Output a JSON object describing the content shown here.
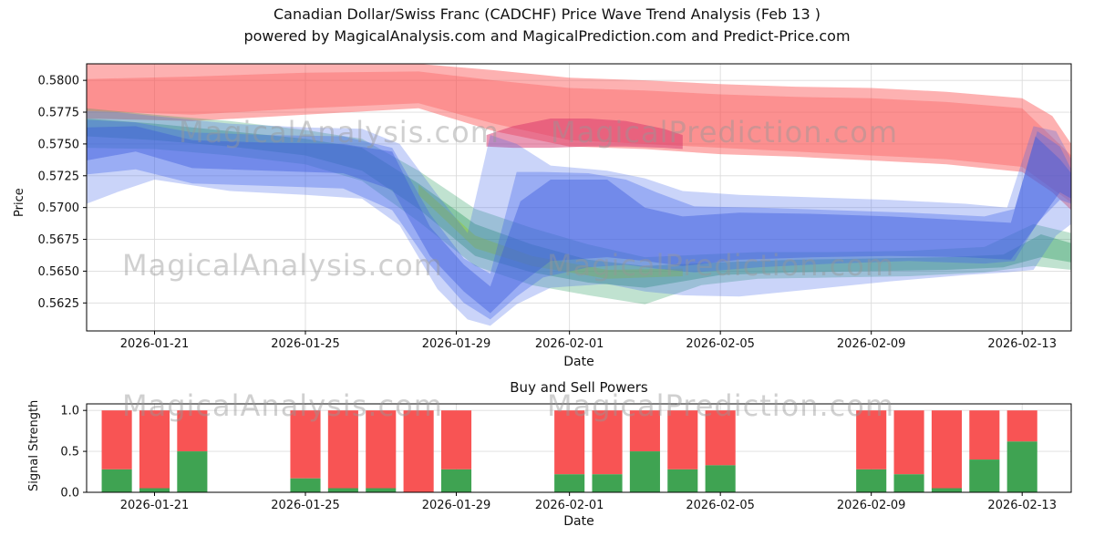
{
  "header": {
    "title_line1": "Canadian Dollar/Swiss Franc (CADCHF) Price Wave Trend Analysis (Feb 13 )",
    "title_line2": "powered by MagicalAnalysis.com and MagicalPrediction.com and Predict-Price.com"
  },
  "watermarks": {
    "analysis": "MagicalAnalysis.com",
    "prediction": "MagicalPrediction.com"
  },
  "colors": {
    "grid": "#dcdcdc",
    "spine": "#000000",
    "red_band": "#fa5252",
    "crimson_band": "#d6336c",
    "blue_band": "#4263eb",
    "green_band": "#2f9e62",
    "yellowgreen_band": "#94c939",
    "bar_red": "#f85454",
    "bar_green": "#3fa352"
  },
  "chart_data": [
    {
      "id": "price",
      "type": "area",
      "title": "",
      "xlabel": "Date",
      "ylabel": "Price",
      "grid": true,
      "legend": false,
      "x_units": "day-of-january-2026 (Feb d = 31+d)",
      "xlim": [
        19.2,
        45.3
      ],
      "ylim": [
        0.5603,
        0.5813
      ],
      "ytick_decimals": 4,
      "yticks": [
        0.5625,
        0.565,
        0.5675,
        0.57,
        0.5725,
        0.575,
        0.5775,
        0.58
      ],
      "xticks": [
        {
          "v": 21,
          "label": "2026-01-21"
        },
        {
          "v": 25,
          "label": "2026-01-25"
        },
        {
          "v": 29,
          "label": "2026-01-29"
        },
        {
          "v": 32,
          "label": "2026-02-01"
        },
        {
          "v": 36,
          "label": "2026-02-05"
        },
        {
          "v": 40,
          "label": "2026-02-09"
        },
        {
          "v": 44,
          "label": "2026-02-13"
        }
      ],
      "bands": [
        {
          "name": "red-envelope-band",
          "color": "#fa5252",
          "opacity": 0.45,
          "x": [
            19.2,
            22,
            25,
            28,
            30,
            32,
            34,
            36,
            38,
            40,
            42,
            44,
            44.8,
            45.3
          ],
          "hi": [
            0.5813,
            0.5813,
            0.5813,
            0.5813,
            0.5808,
            0.5802,
            0.58,
            0.5797,
            0.5795,
            0.5794,
            0.5791,
            0.5786,
            0.5772,
            0.575
          ],
          "lo": [
            0.577,
            0.5768,
            0.5773,
            0.5778,
            0.576,
            0.5748,
            0.5746,
            0.5742,
            0.574,
            0.5737,
            0.5734,
            0.5728,
            0.5712,
            0.5698
          ]
        },
        {
          "name": "red-inner-band",
          "color": "#fa5252",
          "opacity": 0.35,
          "x": [
            19.2,
            22,
            25,
            28,
            30,
            32,
            34,
            36,
            38,
            40,
            42,
            44,
            45.3
          ],
          "hi": [
            0.5801,
            0.5803,
            0.5806,
            0.5807,
            0.58,
            0.5794,
            0.5792,
            0.5789,
            0.5787,
            0.5786,
            0.5783,
            0.5778,
            0.5741
          ],
          "lo": [
            0.5776,
            0.5773,
            0.5778,
            0.5782,
            0.5766,
            0.5753,
            0.575,
            0.5747,
            0.5744,
            0.5741,
            0.5738,
            0.5732,
            0.5704
          ]
        },
        {
          "name": "crimson-band",
          "color": "#d6336c",
          "opacity": 0.5,
          "x": [
            29.8,
            30.5,
            31.5,
            32.5,
            33.5,
            34.5,
            35
          ],
          "hi": [
            0.5757,
            0.5764,
            0.577,
            0.577,
            0.5768,
            0.5762,
            0.5757
          ],
          "lo": [
            0.5748,
            0.5747,
            0.5747,
            0.5748,
            0.5748,
            0.5747,
            0.5746
          ]
        },
        {
          "name": "green-outer-band",
          "color": "#2f9e62",
          "opacity": 0.3,
          "x": [
            19.2,
            21,
            23,
            25,
            26.5,
            28,
            29.5,
            31,
            32.5,
            34,
            35.5,
            37,
            39,
            41,
            43,
            44.3,
            45.3
          ],
          "hi": [
            0.5778,
            0.5773,
            0.5768,
            0.5761,
            0.5754,
            0.5729,
            0.5699,
            0.5684,
            0.5671,
            0.5661,
            0.5663,
            0.5665,
            0.5665,
            0.5666,
            0.5669,
            0.5687,
            0.568
          ],
          "lo": [
            0.5747,
            0.5746,
            0.5741,
            0.5734,
            0.5721,
            0.5689,
            0.5654,
            0.5639,
            0.5631,
            0.5624,
            0.5639,
            0.5644,
            0.5645,
            0.5646,
            0.5649,
            0.5654,
            0.5651
          ]
        },
        {
          "name": "green-inner-band",
          "color": "#2f9e62",
          "opacity": 0.4,
          "x": [
            19.2,
            21,
            23,
            25,
            26.5,
            28,
            29.5,
            31,
            32.5,
            34,
            36,
            38,
            40,
            42,
            43.5,
            44.5,
            45.3
          ],
          "hi": [
            0.577,
            0.5766,
            0.576,
            0.5754,
            0.5747,
            0.5719,
            0.5687,
            0.5671,
            0.5659,
            0.5654,
            0.5657,
            0.5659,
            0.566,
            0.5661,
            0.5663,
            0.5679,
            0.5672
          ],
          "lo": [
            0.5756,
            0.5753,
            0.5748,
            0.5741,
            0.5729,
            0.5699,
            0.5662,
            0.5649,
            0.5641,
            0.5637,
            0.5647,
            0.5649,
            0.565,
            0.5651,
            0.5653,
            0.5661,
            0.5657
          ]
        },
        {
          "name": "yellowgreen-strip-band",
          "color": "#94c939",
          "opacity": 0.5,
          "x": [
            28,
            29.5,
            31,
            33,
            35
          ],
          "hi": [
            0.5718,
            0.5678,
            0.5662,
            0.5651,
            0.5652
          ],
          "lo": [
            0.571,
            0.5668,
            0.5654,
            0.5644,
            0.5646
          ]
        },
        {
          "name": "blue-outer-band",
          "color": "#4263eb",
          "opacity": 0.28,
          "x": [
            19.2,
            20,
            21,
            23,
            25,
            26.5,
            27.5,
            28.5,
            29.3,
            29.9,
            30.6,
            31.5,
            33,
            34,
            35,
            36.5,
            38.5,
            40.5,
            42.5,
            43.6,
            44.3,
            44.9,
            45.3
          ],
          "hi": [
            0.5776,
            0.5775,
            0.5772,
            0.5766,
            0.5763,
            0.5762,
            0.575,
            0.571,
            0.568,
            0.5757,
            0.575,
            0.5733,
            0.5729,
            0.5723,
            0.5713,
            0.571,
            0.5708,
            0.5706,
            0.5703,
            0.57,
            0.5764,
            0.576,
            0.5738
          ],
          "lo": [
            0.5703,
            0.5712,
            0.5722,
            0.5713,
            0.571,
            0.5707,
            0.5686,
            0.5636,
            0.5612,
            0.5607,
            0.5624,
            0.5637,
            0.564,
            0.5634,
            0.5631,
            0.563,
            0.5636,
            0.5642,
            0.5647,
            0.5649,
            0.5651,
            0.5678,
            0.5687
          ]
        },
        {
          "name": "blue-mid-band",
          "color": "#4263eb",
          "opacity": 0.35,
          "x": [
            19.2,
            20.5,
            22,
            24,
            26,
            27.3,
            28.3,
            29.2,
            29.9,
            30.6,
            31.3,
            32.5,
            33.5,
            34.3,
            35.3,
            37,
            39,
            41,
            43,
            43.8,
            44.4,
            45,
            45.3
          ],
          "hi": [
            0.5769,
            0.5767,
            0.5759,
            0.5757,
            0.5756,
            0.5747,
            0.5695,
            0.566,
            0.5648,
            0.5728,
            0.5728,
            0.5727,
            0.5722,
            0.5712,
            0.5701,
            0.57,
            0.5698,
            0.5696,
            0.5693,
            0.5699,
            0.576,
            0.5748,
            0.573
          ],
          "lo": [
            0.5726,
            0.573,
            0.5719,
            0.5717,
            0.5715,
            0.5698,
            0.5655,
            0.5625,
            0.5612,
            0.563,
            0.5645,
            0.5653,
            0.5655,
            0.5652,
            0.5649,
            0.5653,
            0.5656,
            0.5658,
            0.5656,
            0.5658,
            0.5688,
            0.5706,
            0.5703
          ]
        },
        {
          "name": "blue-inner-band",
          "color": "#3b5bdb",
          "opacity": 0.42,
          "x": [
            19.2,
            20.5,
            22,
            24,
            26,
            27.3,
            28.3,
            29.2,
            29.9,
            30.7,
            31.5,
            33,
            34,
            35,
            36.5,
            38.5,
            40.5,
            42.5,
            43.7,
            44.35,
            45,
            45.3
          ],
          "hi": [
            0.5763,
            0.5764,
            0.5753,
            0.5751,
            0.575,
            0.5744,
            0.5685,
            0.5655,
            0.5638,
            0.5705,
            0.5722,
            0.5722,
            0.57,
            0.5693,
            0.5696,
            0.5695,
            0.5693,
            0.569,
            0.5688,
            0.5756,
            0.5738,
            0.5727
          ],
          "lo": [
            0.5737,
            0.5744,
            0.5731,
            0.5729,
            0.5727,
            0.5714,
            0.5662,
            0.5634,
            0.5617,
            0.564,
            0.5658,
            0.5661,
            0.5658,
            0.5654,
            0.5659,
            0.5661,
            0.5662,
            0.5661,
            0.5659,
            0.5685,
            0.5712,
            0.5707
          ]
        }
      ]
    },
    {
      "id": "signals",
      "type": "bar",
      "title": "Buy and Sell Powers",
      "xlabel": "Date",
      "ylabel": "Signal Strength",
      "grid": true,
      "legend": false,
      "xlim": [
        19.2,
        45.3
      ],
      "ylim": [
        0,
        1.08
      ],
      "ytick_decimals": 1,
      "yticks": [
        0.0,
        0.5,
        1.0
      ],
      "xticks": [
        {
          "v": 21,
          "label": "2026-01-21"
        },
        {
          "v": 25,
          "label": "2026-01-25"
        },
        {
          "v": 29,
          "label": "2026-01-29"
        },
        {
          "v": 32,
          "label": "2026-02-01"
        },
        {
          "v": 36,
          "label": "2026-02-05"
        },
        {
          "v": 40,
          "label": "2026-02-09"
        },
        {
          "v": 44,
          "label": "2026-02-13"
        }
      ],
      "bar_width": 0.8,
      "buy_color": "#3fa352",
      "sell_color": "#f85454",
      "bars": [
        {
          "date": "2026-01-20",
          "x": 20,
          "buy": 0.28,
          "sell": 0.72
        },
        {
          "date": "2026-01-21",
          "x": 21,
          "buy": 0.05,
          "sell": 0.95
        },
        {
          "date": "2026-01-22",
          "x": 22,
          "buy": 0.5,
          "sell": 0.5
        },
        {
          "date": "2026-01-25",
          "x": 25,
          "buy": 0.17,
          "sell": 0.83
        },
        {
          "date": "2026-01-26",
          "x": 26,
          "buy": 0.05,
          "sell": 0.95
        },
        {
          "date": "2026-01-27",
          "x": 27,
          "buy": 0.05,
          "sell": 0.95
        },
        {
          "date": "2026-01-28",
          "x": 28,
          "buy": 0.0,
          "sell": 1.0
        },
        {
          "date": "2026-01-29",
          "x": 29,
          "buy": 0.28,
          "sell": 0.72
        },
        {
          "date": "2026-02-01",
          "x": 32,
          "buy": 0.22,
          "sell": 0.78
        },
        {
          "date": "2026-02-02",
          "x": 33,
          "buy": 0.22,
          "sell": 0.78
        },
        {
          "date": "2026-02-03",
          "x": 34,
          "buy": 0.5,
          "sell": 0.5
        },
        {
          "date": "2026-02-04",
          "x": 35,
          "buy": 0.28,
          "sell": 0.72
        },
        {
          "date": "2026-02-05",
          "x": 36,
          "buy": 0.33,
          "sell": 0.67
        },
        {
          "date": "2026-02-09",
          "x": 40,
          "buy": 0.28,
          "sell": 0.72
        },
        {
          "date": "2026-02-10",
          "x": 41,
          "buy": 0.22,
          "sell": 0.78
        },
        {
          "date": "2026-02-11",
          "x": 42,
          "buy": 0.05,
          "sell": 0.95
        },
        {
          "date": "2026-02-12",
          "x": 43,
          "buy": 0.4,
          "sell": 0.6
        },
        {
          "date": "2026-02-13",
          "x": 44,
          "buy": 0.62,
          "sell": 0.38
        }
      ]
    }
  ]
}
